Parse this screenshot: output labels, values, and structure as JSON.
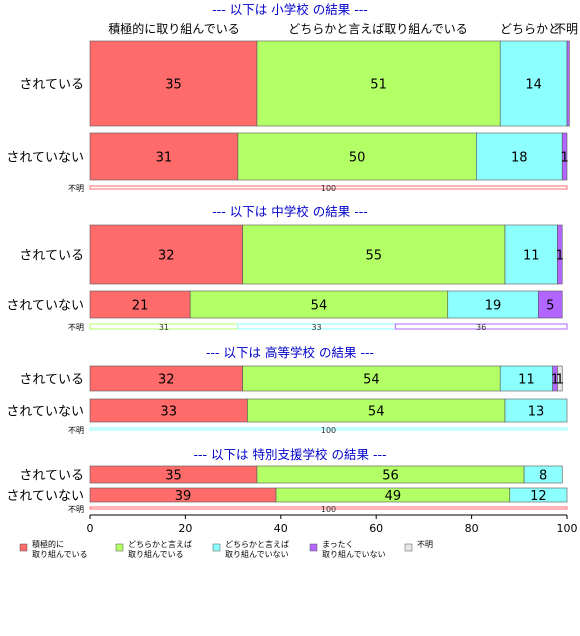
{
  "chart_data": {
    "type": "bar",
    "orientation": "horizontal",
    "stacked": true,
    "xlim": [
      0,
      100
    ],
    "xticks": [
      "0",
      "20",
      "40",
      "60",
      "80",
      "100"
    ],
    "grid": false,
    "legend_position": "bottom",
    "top_labels": [
      "積極的に取り組んでいる",
      "どちらかと言えば取り組んでいる",
      "どちらかと",
      "不明"
    ],
    "legend": [
      {
        "label": "積極的に\n取り組んでいる",
        "color": "#ff6b6b"
      },
      {
        "label": "どちらかと言えば\n取り組んでいる",
        "color": "#b3ff66"
      },
      {
        "label": "どちらかと言えば\n取り組んでいない",
        "color": "#8cffff"
      },
      {
        "label": "まったく\n取り組んでいない",
        "color": "#b266ff"
      },
      {
        "label": "不明",
        "color": "#e6e6e6"
      }
    ],
    "panels": [
      {
        "title": "--- 以下は 小学校 の結果 ---",
        "rows": [
          {
            "label": "されている",
            "values": [
              35,
              51,
              14,
              0.5,
              0
            ],
            "labels": [
              "35",
              "51",
              "14",
              "",
              ""
            ]
          },
          {
            "label": "されていない",
            "values": [
              31,
              50,
              18,
              1,
              0
            ],
            "labels": [
              "31",
              "50",
              "18",
              "1",
              ""
            ]
          }
        ],
        "unknown": {
          "label": "不明",
          "values": [
            100
          ],
          "colors": [
            "#ff6b6b"
          ],
          "labels": [
            "100"
          ]
        }
      },
      {
        "title": "--- 以下は 中学校 の結果 ---",
        "rows": [
          {
            "label": "されている",
            "values": [
              32,
              55,
              11,
              1,
              0
            ],
            "labels": [
              "32",
              "55",
              "11",
              "1",
              ""
            ]
          },
          {
            "label": "されていない",
            "values": [
              21,
              54,
              19,
              5,
              0
            ],
            "labels": [
              "21",
              "54",
              "19",
              "5",
              ""
            ]
          }
        ],
        "unknown": {
          "label": "不明",
          "values": [
            31,
            33,
            36
          ],
          "colors": [
            "#b3ff66",
            "#8cffff",
            "#b266ff"
          ],
          "labels": [
            "31",
            "33",
            "36"
          ]
        }
      },
      {
        "title": "--- 以下は 高等学校 の結果 ---",
        "rows": [
          {
            "label": "されている",
            "values": [
              32,
              54,
              11,
              1,
              1
            ],
            "labels": [
              "32",
              "54",
              "11",
              "1",
              "1"
            ]
          },
          {
            "label": "されていない",
            "values": [
              33,
              54,
              13,
              0,
              0
            ],
            "labels": [
              "33",
              "54",
              "13",
              "",
              ""
            ]
          }
        ],
        "unknown": {
          "label": "不明",
          "values": [
            100
          ],
          "colors": [
            "#8cffff"
          ],
          "labels": [
            "100"
          ]
        }
      },
      {
        "title": "--- 以下は 特別支援学校 の結果 ---",
        "rows": [
          {
            "label": "されている",
            "values": [
              35,
              56,
              8,
              0,
              0
            ],
            "labels": [
              "35",
              "56",
              "8",
              "",
              ""
            ]
          },
          {
            "label": "されていない",
            "values": [
              39,
              49,
              12,
              0,
              0
            ],
            "labels": [
              "39",
              "49",
              "12",
              "",
              ""
            ]
          }
        ],
        "unknown": {
          "label": "不明",
          "values": [
            100
          ],
          "colors": [
            "#ff6b6b"
          ],
          "labels": [
            "100"
          ]
        }
      }
    ]
  }
}
